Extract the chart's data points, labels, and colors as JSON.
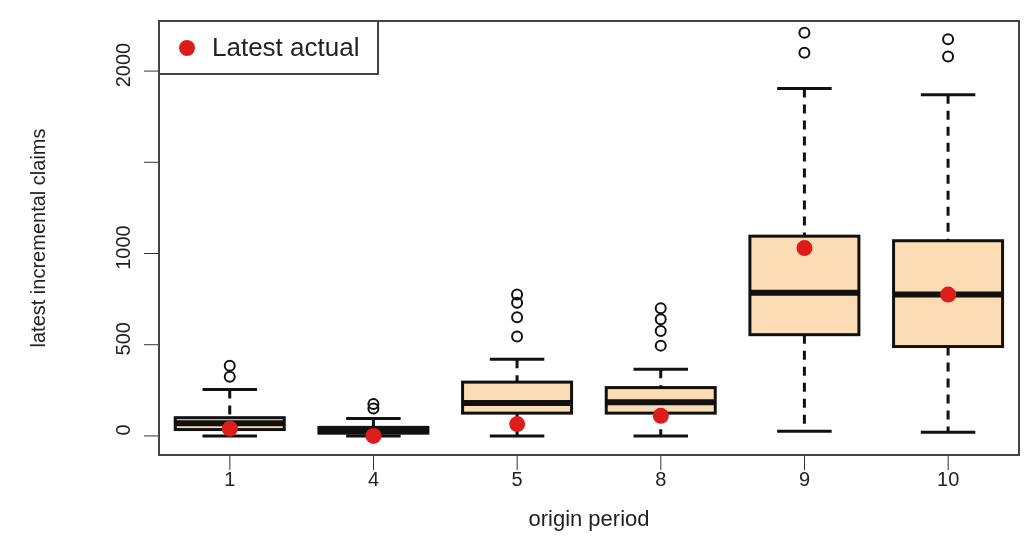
{
  "chart_data": {
    "type": "box",
    "xlabel": "origin period",
    "ylabel": "latest incremental claims",
    "categories": [
      "1",
      "4",
      "5",
      "8",
      "9",
      "10"
    ],
    "ylim": [
      -110,
      2280
    ],
    "yticks": [
      0,
      500,
      1000,
      {
        "value": 1500,
        "label": null
      },
      2000
    ],
    "legend": "top left",
    "series": [
      {
        "color": "#fbdcb5",
        "boxes": [
          {
            "low": 0,
            "q1": 35,
            "median": 70,
            "q3": 100,
            "high": 255,
            "outliers": [
              325,
              385
            ]
          },
          {
            "low": 0,
            "q1": 15,
            "median": 35,
            "q3": 47,
            "high": 95,
            "outliers": [
              150,
              175
            ]
          },
          {
            "low": 0,
            "q1": 125,
            "median": 180,
            "q3": 295,
            "high": 420,
            "outliers": [
              545,
              650,
              730,
              775
            ]
          },
          {
            "low": 0,
            "q1": 125,
            "median": 185,
            "q3": 265,
            "high": 365,
            "outliers": [
              495,
              575,
              640,
              700
            ]
          },
          {
            "low": 25,
            "q1": 555,
            "median": 785,
            "q3": 1095,
            "high": 1905,
            "outliers": [
              2100,
              2210
            ]
          },
          {
            "low": 20,
            "q1": 490,
            "median": 775,
            "q3": 1070,
            "high": 1870,
            "outliers": [
              2080,
              2175
            ]
          }
        ]
      },
      {
        "type": "scatter",
        "name": "Latest actual",
        "color": "#dd1c1c",
        "marker": "circle",
        "x": [
          "1",
          "4",
          "5",
          "8",
          "9",
          "10"
        ],
        "values": [
          40,
          0,
          65,
          110,
          1030,
          775
        ]
      }
    ]
  }
}
